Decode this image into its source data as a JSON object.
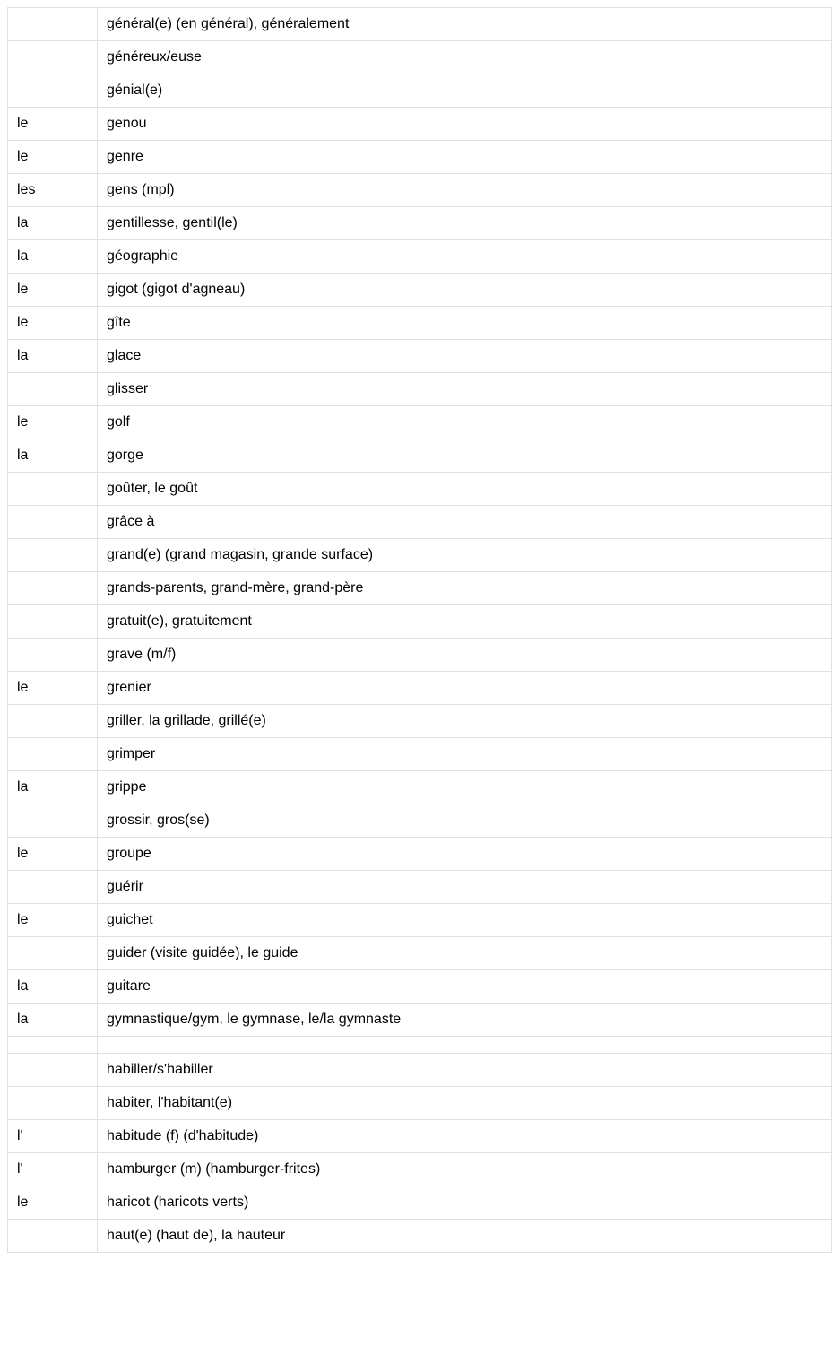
{
  "table": {
    "columns": [
      "article",
      "word"
    ],
    "col_widths": [
      "100px",
      "auto"
    ],
    "border_color": "#e0e0e0",
    "background_color": "#ffffff",
    "text_color": "#000000",
    "font_size": 16,
    "cell_padding": "9px 10px",
    "rows": [
      {
        "article": "",
        "word": "général(e) (en général), généralement"
      },
      {
        "article": "",
        "word": "généreux/euse"
      },
      {
        "article": "",
        "word": "génial(e)"
      },
      {
        "article": "le",
        "word": "genou"
      },
      {
        "article": "le",
        "word": "genre"
      },
      {
        "article": "les",
        "word": "gens (mpl)"
      },
      {
        "article": "la",
        "word": "gentillesse, gentil(le)"
      },
      {
        "article": "la",
        "word": "géographie"
      },
      {
        "article": "le",
        "word": "gigot (gigot d'agneau)"
      },
      {
        "article": "le",
        "word": "gîte"
      },
      {
        "article": "la",
        "word": "glace"
      },
      {
        "article": "",
        "word": "glisser"
      },
      {
        "article": "le",
        "word": "golf"
      },
      {
        "article": "la",
        "word": "gorge"
      },
      {
        "article": "",
        "word": "goûter, le goût"
      },
      {
        "article": "",
        "word": "grâce à"
      },
      {
        "article": "",
        "word": "grand(e) (grand magasin, grande surface)"
      },
      {
        "article": "",
        "word": "grands-parents, grand-mère, grand-père"
      },
      {
        "article": "",
        "word": "gratuit(e), gratuitement"
      },
      {
        "article": "",
        "word": "grave (m/f)"
      },
      {
        "article": "le",
        "word": "grenier"
      },
      {
        "article": "",
        "word": "griller, la grillade, grillé(e)"
      },
      {
        "article": "",
        "word": "grimper"
      },
      {
        "article": "la",
        "word": "grippe"
      },
      {
        "article": "",
        "word": "grossir, gros(se)"
      },
      {
        "article": "le",
        "word": "groupe"
      },
      {
        "article": "",
        "word": "guérir"
      },
      {
        "article": "le",
        "word": "guichet"
      },
      {
        "article": "",
        "word": "guider (visite guidée), le guide"
      },
      {
        "article": "la",
        "word": "guitare"
      },
      {
        "article": "la",
        "word": "gymnastique/gym, le gymnase, le/la gymnaste"
      },
      {
        "article": "",
        "word": ""
      },
      {
        "article": "",
        "word": "habiller/s'habiller"
      },
      {
        "article": "",
        "word": "habiter, l'habitant(e)"
      },
      {
        "article": "l'",
        "word": "habitude (f) (d'habitude)"
      },
      {
        "article": "l'",
        "word": "hamburger (m) (hamburger-frites)"
      },
      {
        "article": "le",
        "word": "haricot (haricots verts)"
      },
      {
        "article": "",
        "word": "haut(e) (haut de), la hauteur"
      }
    ]
  }
}
